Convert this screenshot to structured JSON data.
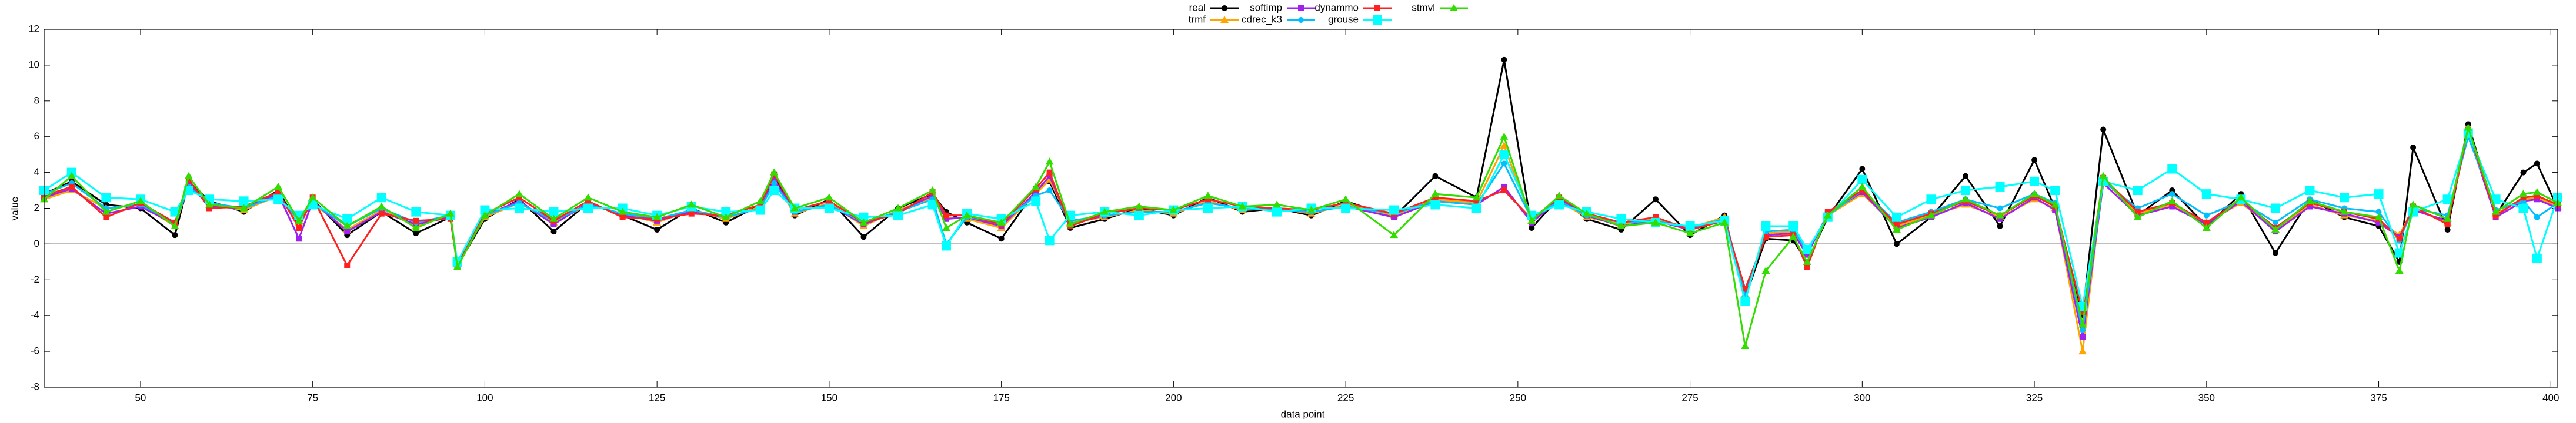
{
  "chart_data": {
    "type": "line",
    "xlabel": "data point",
    "ylabel": "value",
    "xlim": [
      36,
      401
    ],
    "ylim": [
      -8,
      12
    ],
    "xticks": [
      50,
      75,
      100,
      125,
      150,
      175,
      200,
      225,
      250,
      275,
      300,
      325,
      350,
      375,
      400
    ],
    "yticks": [
      -8,
      -6,
      -4,
      -2,
      0,
      2,
      4,
      6,
      8,
      10,
      12
    ],
    "zero_line": true,
    "legend": "top",
    "x": [
      36,
      40,
      45,
      50,
      55,
      57,
      60,
      65,
      70,
      73,
      75,
      80,
      85,
      90,
      95,
      96,
      100,
      105,
      110,
      115,
      120,
      125,
      130,
      135,
      140,
      142,
      145,
      150,
      155,
      160,
      165,
      167,
      170,
      175,
      180,
      182,
      185,
      190,
      195,
      200,
      205,
      210,
      215,
      220,
      225,
      232,
      238,
      244,
      248,
      252,
      256,
      260,
      265,
      270,
      275,
      280,
      283,
      286,
      290,
      292,
      295,
      300,
      305,
      310,
      315,
      320,
      325,
      328,
      332,
      335,
      340,
      345,
      350,
      355,
      360,
      365,
      370,
      375,
      378,
      380,
      385,
      388,
      392,
      396,
      398,
      401
    ],
    "series": [
      {
        "name": "real",
        "color": "#000000",
        "marker": "circle",
        "values": [
          2.8,
          3.5,
          2.2,
          2.0,
          0.5,
          3.5,
          2.4,
          1.8,
          3.0,
          1.0,
          2.5,
          0.5,
          1.8,
          0.6,
          1.5,
          -1.2,
          1.4,
          2.5,
          0.7,
          2.3,
          1.6,
          0.8,
          2.0,
          1.2,
          2.2,
          3.8,
          1.6,
          2.5,
          0.4,
          2.0,
          2.8,
          1.8,
          1.2,
          0.3,
          3.0,
          3.5,
          0.9,
          1.4,
          2.0,
          1.6,
          2.6,
          1.8,
          2.0,
          1.6,
          2.4,
          1.5,
          3.8,
          2.6,
          10.3,
          0.9,
          2.6,
          1.4,
          0.8,
          2.5,
          0.5,
          1.6,
          -3.0,
          0.3,
          0.2,
          -1.0,
          1.5,
          4.2,
          0.0,
          1.5,
          3.8,
          1.0,
          4.7,
          2.0,
          -4.0,
          6.4,
          1.6,
          3.0,
          1.0,
          2.8,
          -0.5,
          2.5,
          1.5,
          1.0,
          -1.0,
          5.4,
          0.8,
          6.7,
          1.6,
          4.0,
          4.5,
          2.0
        ]
      },
      {
        "name": "trmf",
        "color": "#ffa500",
        "marker": "triangle",
        "values": [
          2.5,
          3.0,
          2.0,
          2.2,
          1.0,
          3.3,
          2.2,
          1.9,
          2.7,
          1.2,
          2.3,
          0.8,
          1.9,
          1.0,
          1.6,
          -1.1,
          1.5,
          2.3,
          1.2,
          2.2,
          1.7,
          1.2,
          1.9,
          1.4,
          2.1,
          3.5,
          1.7,
          2.3,
          1.0,
          1.9,
          2.6,
          1.5,
          1.4,
          0.9,
          2.8,
          3.6,
          1.2,
          1.5,
          1.9,
          1.7,
          2.4,
          1.9,
          2.0,
          1.7,
          2.2,
          1.6,
          2.5,
          2.3,
          5.5,
          1.3,
          2.4,
          1.5,
          1.1,
          1.4,
          0.9,
          1.5,
          -2.8,
          0.6,
          0.7,
          -0.5,
          1.6,
          2.8,
          1.0,
          1.6,
          2.2,
          1.5,
          2.5,
          2.0,
          -6.0,
          3.6,
          1.7,
          2.2,
          1.2,
          2.3,
          0.8,
          2.2,
          1.6,
          1.3,
          0.5,
          2.0,
          1.2,
          6.3,
          1.7,
          2.5,
          2.6,
          2.1
        ]
      },
      {
        "name": "softimp",
        "color": "#a020f0",
        "marker": "square",
        "values": [
          2.6,
          3.1,
          1.7,
          2.1,
          1.1,
          3.4,
          2.1,
          2.0,
          2.8,
          0.3,
          2.4,
          0.7,
          1.8,
          1.1,
          1.5,
          -1.2,
          1.6,
          2.4,
          1.1,
          2.3,
          1.6,
          1.3,
          1.8,
          1.5,
          2.0,
          3.6,
          1.8,
          2.2,
          1.1,
          1.8,
          2.7,
          1.4,
          1.5,
          1.0,
          2.9,
          3.8,
          1.1,
          1.6,
          1.8,
          1.8,
          2.3,
          2.0,
          1.9,
          1.8,
          2.1,
          1.5,
          2.4,
          2.2,
          3.2,
          1.2,
          2.5,
          1.6,
          1.0,
          1.3,
          0.8,
          1.4,
          -2.6,
          0.5,
          0.6,
          -0.6,
          1.7,
          2.9,
          0.9,
          1.5,
          2.3,
          1.4,
          2.6,
          1.9,
          -5.2,
          3.4,
          1.6,
          2.1,
          1.1,
          2.4,
          0.7,
          2.1,
          1.7,
          1.2,
          0.4,
          1.9,
          1.3,
          6.2,
          1.5,
          2.4,
          2.5,
          2.0
        ]
      },
      {
        "name": "cdrec_k3",
        "color": "#00bfff",
        "marker": "circle",
        "values": [
          2.8,
          3.4,
          2.0,
          2.2,
          1.2,
          3.2,
          2.3,
          2.0,
          2.7,
          1.3,
          2.3,
          1.0,
          2.0,
          1.2,
          1.6,
          -1.1,
          1.6,
          2.3,
          1.3,
          2.2,
          1.7,
          1.4,
          1.9,
          1.5,
          2.0,
          3.4,
          1.8,
          2.2,
          1.2,
          1.8,
          2.5,
          0.0,
          1.5,
          1.2,
          2.7,
          3.0,
          1.3,
          1.6,
          1.8,
          1.8,
          2.3,
          2.0,
          1.9,
          1.8,
          2.1,
          1.7,
          2.4,
          2.2,
          4.5,
          1.4,
          2.4,
          1.6,
          1.2,
          1.3,
          0.9,
          1.4,
          -2.9,
          0.7,
          0.8,
          -0.4,
          1.6,
          3.0,
          1.2,
          1.8,
          2.5,
          2.0,
          2.8,
          2.3,
          -4.8,
          3.5,
          2.0,
          2.8,
          1.6,
          2.4,
          1.2,
          2.5,
          2.0,
          1.8,
          0.2,
          2.0,
          1.6,
          6.0,
          1.9,
          2.4,
          1.5,
          2.3
        ]
      },
      {
        "name": "dynammo",
        "color": "#ff2020",
        "marker": "square",
        "values": [
          2.7,
          3.2,
          1.5,
          2.3,
          1.2,
          3.6,
          2.0,
          2.1,
          2.9,
          0.9,
          2.6,
          -1.2,
          1.7,
          1.3,
          1.4,
          -1.1,
          1.7,
          2.6,
          1.3,
          2.4,
          1.5,
          1.4,
          1.7,
          1.6,
          2.2,
          3.9,
          1.9,
          2.4,
          1.2,
          1.7,
          2.9,
          1.6,
          1.6,
          1.1,
          3.1,
          4.0,
          1.0,
          1.7,
          2.0,
          1.9,
          2.5,
          2.1,
          2.0,
          1.9,
          2.3,
          1.7,
          2.6,
          2.4,
          3.0,
          1.4,
          2.6,
          1.7,
          1.2,
          1.5,
          0.8,
          1.3,
          -2.5,
          0.4,
          0.5,
          -1.3,
          1.8,
          3.0,
          1.1,
          1.7,
          2.4,
          1.6,
          2.7,
          2.1,
          -3.8,
          3.7,
          1.8,
          2.3,
          1.2,
          2.5,
          0.9,
          2.3,
          1.8,
          1.4,
          0.3,
          2.1,
          1.1,
          6.4,
          1.6,
          2.6,
          2.7,
          2.2
        ]
      },
      {
        "name": "grouse",
        "color": "#00ffff",
        "marker": "bigsquare",
        "values": [
          3.0,
          4.0,
          2.6,
          2.5,
          1.8,
          3.0,
          2.5,
          2.4,
          2.5,
          1.6,
          2.2,
          1.4,
          2.6,
          1.8,
          1.6,
          -1.0,
          1.9,
          2.0,
          1.8,
          2.0,
          2.0,
          1.6,
          2.1,
          1.8,
          1.9,
          3.0,
          2.0,
          2.0,
          1.5,
          1.6,
          2.2,
          -0.1,
          1.7,
          1.4,
          2.4,
          0.2,
          1.6,
          1.8,
          1.6,
          1.9,
          2.0,
          2.1,
          1.8,
          2.0,
          2.0,
          1.9,
          2.2,
          2.0,
          5.0,
          1.6,
          2.2,
          1.8,
          1.4,
          1.2,
          1.0,
          1.3,
          -3.2,
          1.0,
          1.0,
          -0.3,
          1.5,
          3.6,
          1.5,
          2.5,
          3.0,
          3.2,
          3.5,
          3.0,
          -3.5,
          3.5,
          3.0,
          4.2,
          2.8,
          2.5,
          2.0,
          3.0,
          2.6,
          2.8,
          -0.5,
          1.8,
          2.5,
          6.2,
          2.5,
          2.0,
          -0.8,
          2.6
        ]
      },
      {
        "name": "stmvl",
        "color": "#33dd00",
        "marker": "triangle",
        "values": [
          2.5,
          3.8,
          1.8,
          2.4,
          1.0,
          3.8,
          2.2,
          2.0,
          3.2,
          1.3,
          2.6,
          1.0,
          2.1,
          0.9,
          1.7,
          -1.3,
          1.6,
          2.8,
          1.4,
          2.6,
          1.8,
          1.5,
          2.2,
          1.5,
          2.4,
          4.0,
          2.0,
          2.6,
          1.2,
          2.0,
          3.0,
          0.9,
          1.6,
          1.2,
          3.2,
          4.6,
          1.1,
          1.8,
          2.1,
          1.9,
          2.7,
          2.1,
          2.2,
          1.9,
          2.5,
          0.5,
          2.8,
          2.6,
          6.0,
          1.3,
          2.7,
          1.7,
          1.0,
          1.2,
          0.6,
          1.2,
          -5.7,
          -1.5,
          0.4,
          -1.0,
          1.6,
          3.2,
          0.8,
          1.6,
          2.5,
          1.6,
          2.8,
          2.2,
          -4.5,
          3.8,
          1.5,
          2.4,
          0.9,
          2.6,
          0.8,
          2.4,
          1.8,
          1.5,
          -1.5,
          2.2,
          1.4,
          6.5,
          1.8,
          2.8,
          2.9,
          2.3
        ]
      }
    ]
  }
}
